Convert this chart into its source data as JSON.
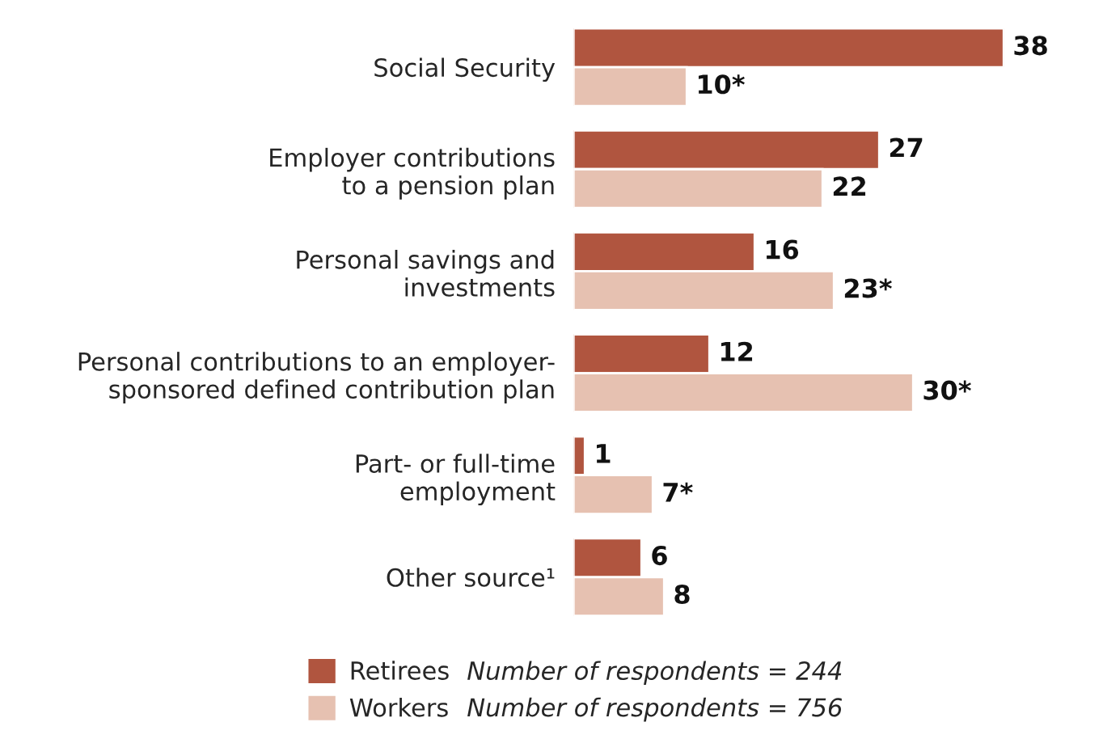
{
  "chart_data": {
    "type": "bar",
    "orientation": "horizontal",
    "categories": [
      "Social Security",
      "Employer contributions\nto a pension plan",
      "Personal savings and\ninvestments",
      "Personal contributions to an employer-\nsponsored defined contribution plan",
      "Part- or full-time\nemployment",
      "Other source¹"
    ],
    "series": [
      {
        "name": "Retirees",
        "color": "#b0553f",
        "values": [
          38,
          27,
          16,
          12,
          1,
          6
        ],
        "value_labels": [
          "38",
          "27",
          "16",
          "12",
          "1",
          "6"
        ]
      },
      {
        "name": "Workers",
        "color": "#e6c1b1",
        "values": [
          10,
          22,
          23,
          30,
          7,
          8
        ],
        "value_labels": [
          "10*",
          "22",
          "23*",
          "30*",
          "7*",
          "8"
        ]
      }
    ],
    "annotations": [
      "Number of respondents = 244",
      "Number of respondents = 756"
    ],
    "legend": "bottom left"
  }
}
